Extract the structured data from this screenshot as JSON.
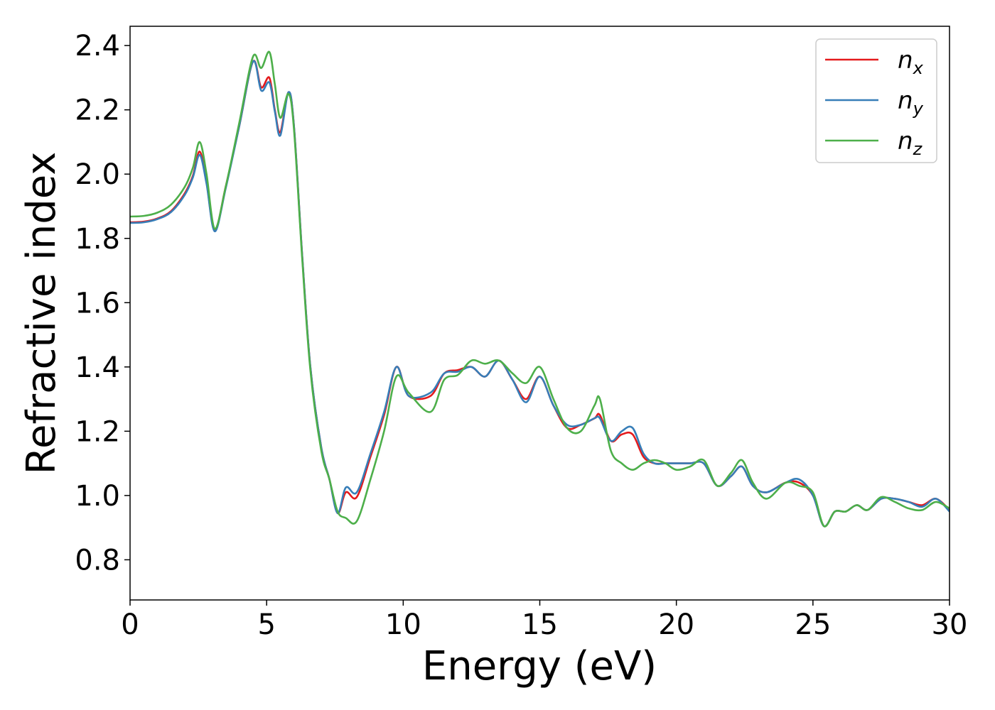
{
  "chart_data": {
    "type": "line",
    "xlabel": "Energy (eV)",
    "ylabel": "Refractive index",
    "xlim": [
      0,
      30
    ],
    "ylim": [
      0.675,
      2.46
    ],
    "xticks": [
      0,
      5,
      10,
      15,
      20,
      25,
      30
    ],
    "yticks": [
      0.8,
      1.0,
      1.2,
      1.4,
      1.6,
      1.8,
      2.0,
      2.2,
      2.4
    ],
    "xtick_labels": [
      "0",
      "5",
      "10",
      "15",
      "20",
      "25",
      "30"
    ],
    "ytick_labels": [
      "0.8",
      "1.0",
      "1.2",
      "1.4",
      "1.6",
      "1.8",
      "2.0",
      "2.2",
      "2.4"
    ],
    "grid": false,
    "legend_position": "top-right",
    "x": [
      0,
      0.5,
      1,
      1.5,
      2,
      2.3,
      2.55,
      2.8,
      3.1,
      3.5,
      4,
      4.5,
      4.8,
      5.1,
      5.3,
      5.5,
      5.8,
      6,
      6.3,
      6.6,
      7,
      7.3,
      7.6,
      7.9,
      8.3,
      8.8,
      9.3,
      9.75,
      10.2,
      11,
      11.5,
      12,
      12.5,
      13,
      13.5,
      14,
      14.5,
      15,
      15.5,
      16,
      16.5,
      17,
      17.2,
      17.6,
      18,
      18.4,
      18.8,
      19.2,
      19.6,
      20,
      20.5,
      21,
      21.5,
      22,
      22.4,
      22.8,
      23.3,
      24,
      24.5,
      25,
      25.4,
      25.8,
      26.2,
      26.6,
      27,
      27.5,
      28,
      28.5,
      29,
      29.5,
      30
    ],
    "series": [
      {
        "name": "n_x",
        "color": "#e41a1c",
        "values": [
          1.85,
          1.852,
          1.862,
          1.885,
          1.94,
          1.995,
          2.07,
          1.975,
          1.825,
          1.96,
          2.15,
          2.35,
          2.27,
          2.3,
          2.2,
          2.13,
          2.255,
          2.15,
          1.75,
          1.4,
          1.15,
          1.05,
          0.945,
          1.01,
          0.995,
          1.12,
          1.25,
          1.4,
          1.31,
          1.31,
          1.38,
          1.39,
          1.4,
          1.37,
          1.42,
          1.36,
          1.3,
          1.37,
          1.28,
          1.21,
          1.22,
          1.24,
          1.25,
          1.17,
          1.19,
          1.19,
          1.12,
          1.1,
          1.1,
          1.1,
          1.1,
          1.1,
          1.03,
          1.06,
          1.09,
          1.03,
          1.01,
          1.04,
          1.04,
          1.0,
          0.905,
          0.95,
          0.95,
          0.97,
          0.955,
          0.99,
          0.99,
          0.98,
          0.97,
          0.99,
          0.955
        ]
      },
      {
        "name": "n_y",
        "color": "#377eb8",
        "values": [
          1.848,
          1.85,
          1.86,
          1.882,
          1.935,
          1.99,
          2.06,
          1.97,
          1.822,
          1.955,
          2.15,
          2.35,
          2.26,
          2.285,
          2.195,
          2.12,
          2.255,
          2.15,
          1.75,
          1.4,
          1.15,
          1.05,
          0.945,
          1.025,
          1.01,
          1.13,
          1.26,
          1.4,
          1.31,
          1.32,
          1.38,
          1.385,
          1.4,
          1.37,
          1.42,
          1.36,
          1.29,
          1.37,
          1.28,
          1.22,
          1.22,
          1.24,
          1.24,
          1.17,
          1.2,
          1.21,
          1.13,
          1.1,
          1.1,
          1.1,
          1.1,
          1.1,
          1.03,
          1.06,
          1.09,
          1.03,
          1.01,
          1.04,
          1.05,
          1.0,
          0.905,
          0.95,
          0.95,
          0.97,
          0.955,
          0.99,
          0.99,
          0.98,
          0.965,
          0.99,
          0.95
        ]
      },
      {
        "name": "n_z",
        "color": "#4daf4a",
        "values": [
          1.868,
          1.87,
          1.88,
          1.905,
          1.96,
          2.02,
          2.1,
          2.0,
          1.83,
          1.96,
          2.16,
          2.365,
          2.33,
          2.38,
          2.28,
          2.175,
          2.25,
          2.14,
          1.74,
          1.39,
          1.14,
          1.05,
          0.95,
          0.93,
          0.92,
          1.05,
          1.2,
          1.37,
          1.32,
          1.26,
          1.36,
          1.375,
          1.42,
          1.41,
          1.42,
          1.38,
          1.35,
          1.4,
          1.3,
          1.21,
          1.2,
          1.28,
          1.3,
          1.14,
          1.1,
          1.08,
          1.1,
          1.11,
          1.1,
          1.08,
          1.09,
          1.11,
          1.03,
          1.07,
          1.11,
          1.04,
          0.99,
          1.04,
          1.03,
          1.01,
          0.905,
          0.95,
          0.95,
          0.97,
          0.955,
          0.995,
          0.98,
          0.96,
          0.955,
          0.98,
          0.96
        ]
      }
    ]
  },
  "legend": {
    "items": [
      {
        "base": "n",
        "sub": "x",
        "color": "#e41a1c"
      },
      {
        "base": "n",
        "sub": "y",
        "color": "#377eb8"
      },
      {
        "base": "n",
        "sub": "z",
        "color": "#4daf4a"
      }
    ]
  }
}
